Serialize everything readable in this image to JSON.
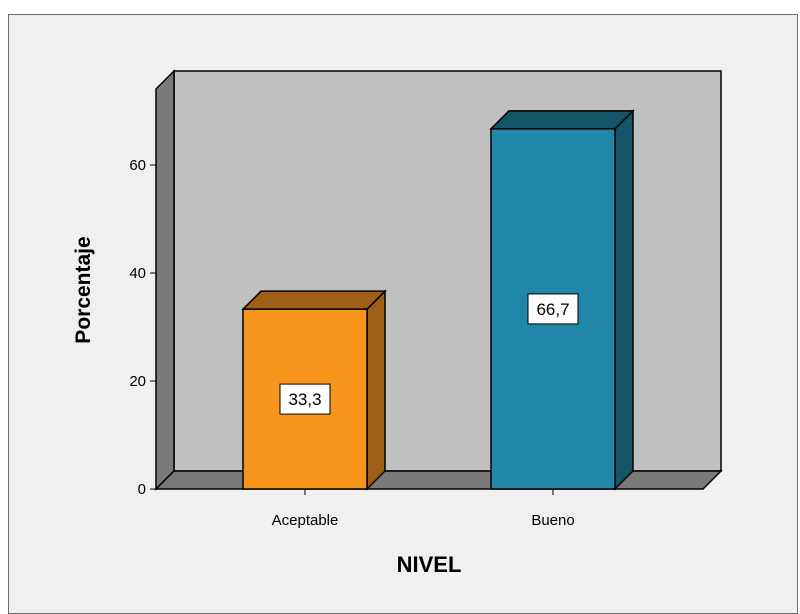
{
  "chart_data": {
    "type": "bar",
    "style": "3d",
    "categories": [
      "Aceptable",
      "Bueno"
    ],
    "values": [
      33.3,
      66.7
    ],
    "data_labels": [
      "33,3",
      "66,7"
    ],
    "xlabel": "NIVEL",
    "ylabel": "Porcentaje",
    "ylim": [
      0,
      80
    ],
    "yticks": [
      "0",
      "20",
      "40",
      "60"
    ],
    "grid": false,
    "legend": "none",
    "colors": {
      "bars": [
        "#f7951d",
        "#2187a8"
      ],
      "bar_tops": [
        "#a05f17",
        "#16546a"
      ],
      "bar_sides": [
        "#a05f17",
        "#16546a"
      ],
      "plot_back": "#c0c0c0",
      "plot_walls": "#7a7a7a",
      "background": "#f0f0f0"
    }
  }
}
